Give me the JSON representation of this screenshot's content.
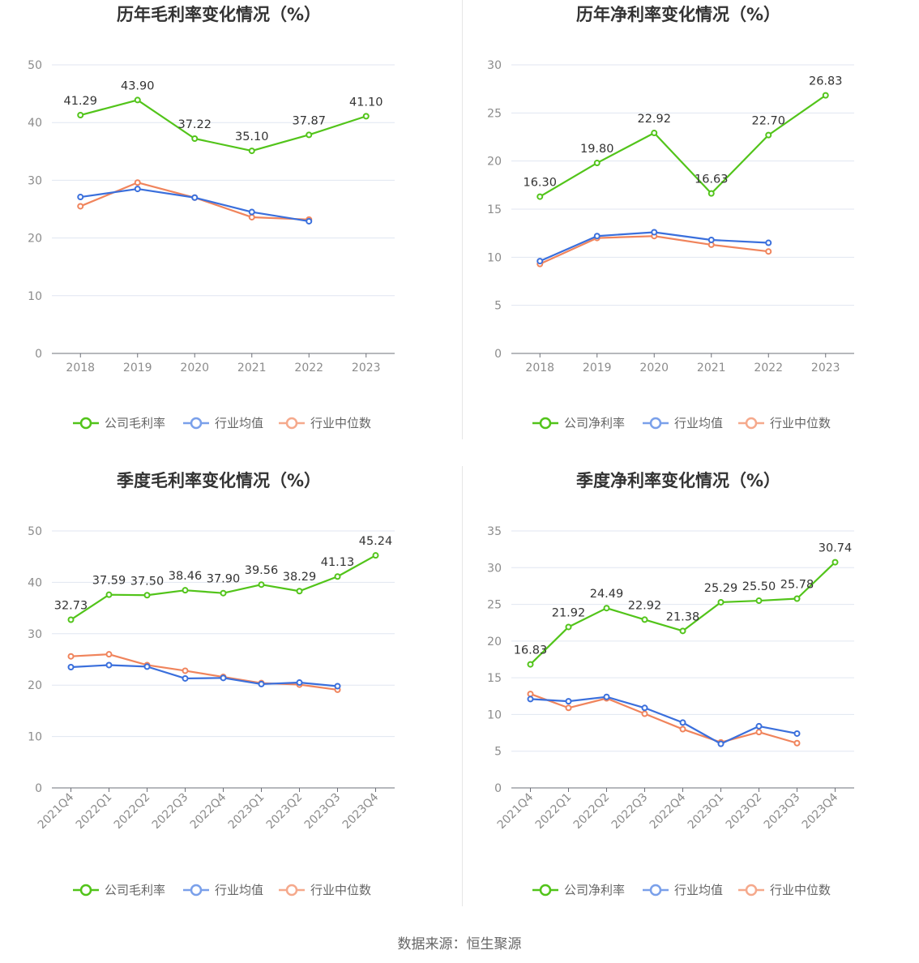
{
  "source_text": "数据来源：恒生聚源",
  "colors": {
    "company": "#52c41a",
    "avg": "#3a6fdc",
    "median": "#f0845c"
  },
  "chart_data": [
    {
      "type": "line",
      "title": "历年毛利率变化情况（%）",
      "categories": [
        "2018",
        "2019",
        "2020",
        "2021",
        "2022",
        "2023"
      ],
      "ylim": [
        0,
        50
      ],
      "yticks": [
        0,
        10,
        20,
        30,
        40,
        50
      ],
      "grid": true,
      "legend_position": "bottom",
      "series": [
        {
          "name": "公司毛利率",
          "values": [
            41.29,
            43.9,
            37.22,
            35.1,
            37.87,
            41.1
          ],
          "labels": [
            "41.29",
            "43.90",
            "37.22",
            "35.10",
            "37.87",
            "41.10"
          ]
        },
        {
          "name": "行业均值",
          "values": [
            27.1,
            28.5,
            27.0,
            24.5,
            22.9,
            null
          ]
        },
        {
          "name": "行业中位数",
          "values": [
            25.5,
            29.6,
            27.0,
            23.6,
            23.2,
            null
          ]
        }
      ]
    },
    {
      "type": "line",
      "title": "历年净利率变化情况（%）",
      "categories": [
        "2018",
        "2019",
        "2020",
        "2021",
        "2022",
        "2023"
      ],
      "ylim": [
        0,
        30
      ],
      "yticks": [
        0,
        5,
        10,
        15,
        20,
        25,
        30
      ],
      "grid": true,
      "legend_position": "bottom",
      "series": [
        {
          "name": "公司净利率",
          "values": [
            16.3,
            19.8,
            22.92,
            16.63,
            22.7,
            26.83
          ],
          "labels": [
            "16.30",
            "19.80",
            "22.92",
            "16.63",
            "22.70",
            "26.83"
          ]
        },
        {
          "name": "行业均值",
          "values": [
            9.6,
            12.2,
            12.6,
            11.8,
            11.5,
            null
          ]
        },
        {
          "name": "行业中位数",
          "values": [
            9.3,
            12.0,
            12.2,
            11.3,
            10.6,
            null
          ]
        }
      ]
    },
    {
      "type": "line",
      "title": "季度毛利率变化情况（%）",
      "categories": [
        "2021Q4",
        "2022Q1",
        "2022Q2",
        "2022Q3",
        "2022Q4",
        "2023Q1",
        "2023Q2",
        "2023Q3",
        "2023Q4"
      ],
      "ylim": [
        0,
        50
      ],
      "yticks": [
        0,
        10,
        20,
        30,
        40,
        50
      ],
      "grid": true,
      "legend_position": "bottom",
      "series": [
        {
          "name": "公司毛利率",
          "values": [
            32.73,
            37.59,
            37.5,
            38.46,
            37.9,
            39.56,
            38.29,
            41.13,
            45.24
          ],
          "labels": [
            "32.73",
            "37.59",
            "37.50",
            "38.46",
            "37.90",
            "39.56",
            "38.29",
            "41.13",
            "45.24"
          ]
        },
        {
          "name": "行业均值",
          "values": [
            23.5,
            23.9,
            23.6,
            21.3,
            21.4,
            20.2,
            20.5,
            19.8,
            null
          ]
        },
        {
          "name": "行业中位数",
          "values": [
            25.6,
            26.0,
            23.9,
            22.8,
            21.6,
            20.4,
            20.1,
            19.1,
            null
          ]
        }
      ]
    },
    {
      "type": "line",
      "title": "季度净利率变化情况（%）",
      "categories": [
        "2021Q4",
        "2022Q1",
        "2022Q2",
        "2022Q3",
        "2022Q4",
        "2023Q1",
        "2023Q2",
        "2023Q3",
        "2023Q4"
      ],
      "ylim": [
        0,
        35
      ],
      "yticks": [
        0,
        5,
        10,
        15,
        20,
        25,
        30,
        35
      ],
      "grid": true,
      "legend_position": "bottom",
      "series": [
        {
          "name": "公司净利率",
          "values": [
            16.83,
            21.92,
            24.49,
            22.92,
            21.38,
            25.29,
            25.5,
            25.78,
            30.74
          ],
          "labels": [
            "16.83",
            "21.92",
            "24.49",
            "22.92",
            "21.38",
            "25.29",
            "25.50",
            "25.78",
            "30.74"
          ]
        },
        {
          "name": "行业均值",
          "values": [
            12.1,
            11.8,
            12.4,
            10.9,
            8.9,
            6.0,
            8.4,
            7.4,
            null
          ]
        },
        {
          "name": "行业中位数",
          "values": [
            12.8,
            10.9,
            12.2,
            10.1,
            8.0,
            6.2,
            7.6,
            6.1,
            null
          ]
        }
      ]
    }
  ]
}
